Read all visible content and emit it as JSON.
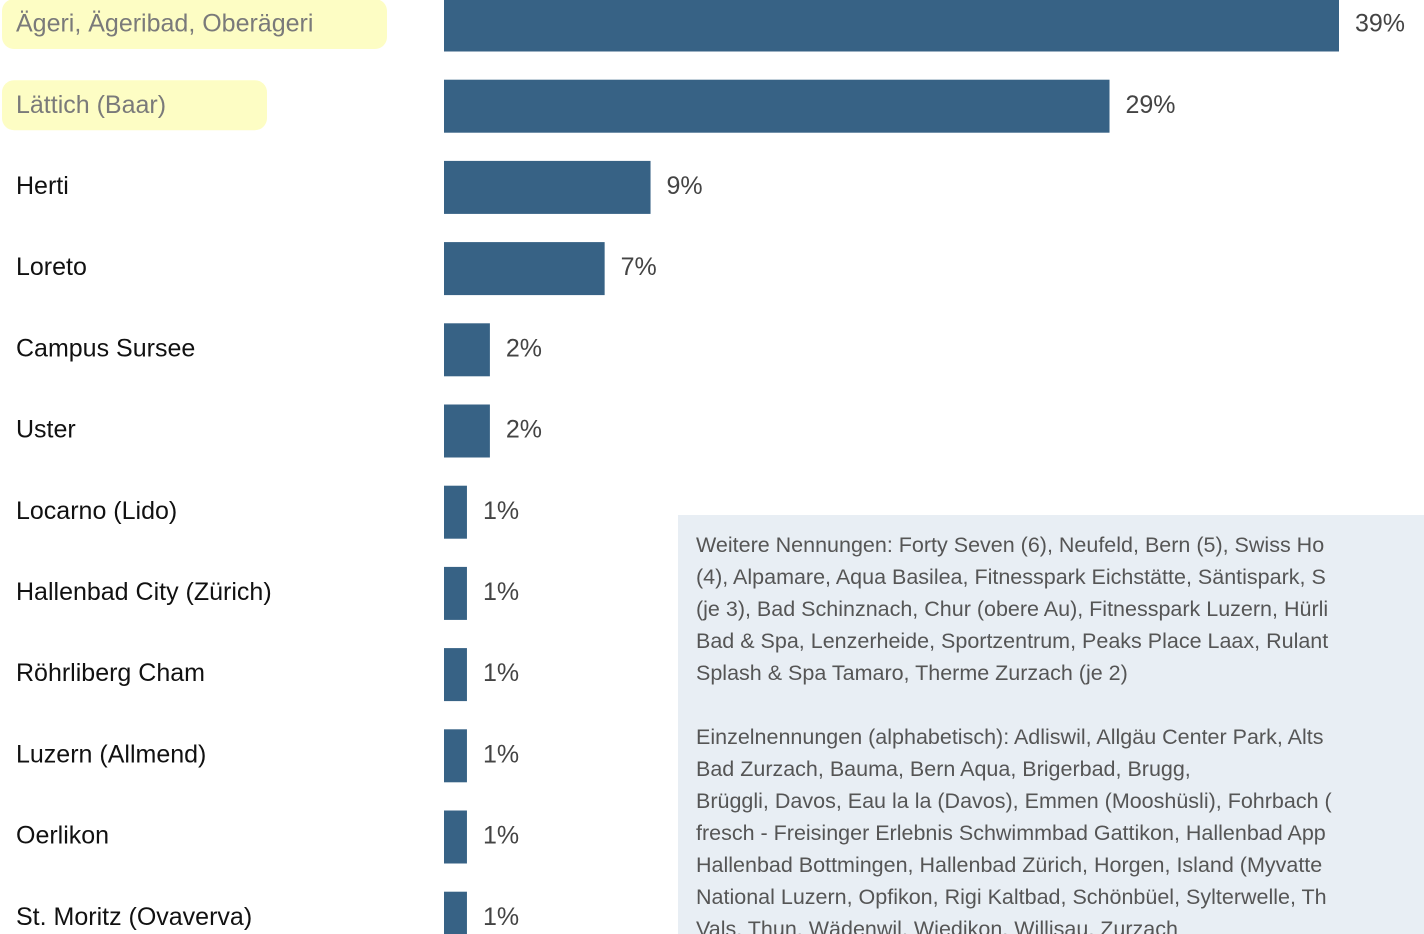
{
  "chart_data": {
    "type": "barh",
    "categories": [
      "Ägeri, Ägeribad, Oberägeri",
      "Lättich (Baar)",
      "Herti",
      "Loreto",
      "Campus Sursee",
      "Uster",
      "Locarno (Lido)",
      "Hallenbad City (Zürich)",
      "Röhrliberg Cham",
      "Luzern (Allmend)",
      "Oerlikon",
      "St. Moritz (Ovaverva)"
    ],
    "values": [
      39,
      29,
      9,
      7,
      2,
      2,
      1,
      1,
      1,
      1,
      1,
      1
    ],
    "value_labels": [
      "39%",
      "29%",
      "9%",
      "7%",
      "2%",
      "2%",
      "1%",
      "1%",
      "1%",
      "1%",
      "1%",
      "1%"
    ],
    "color": "#376285",
    "highlighted": [
      true,
      true,
      false,
      false,
      false,
      false,
      false,
      false,
      false,
      false,
      false,
      false
    ],
    "highlight_color": "#fdfdc4"
  },
  "note": {
    "paragraphs": [
      {
        "lines": [
          "Weitere Nennungen: Forty Seven (6), Neufeld, Bern (5), Swiss Ho",
          "(4), Alpamare, Aqua Basilea, Fitnesspark Eichstätte, Säntispark, S",
          "(je 3), Bad Schinznach, Chur (obere Au), Fitnesspark Luzern, Hürli",
          "Bad & Spa, Lenzerheide, Sportzentrum, Peaks Place Laax, Rulant",
          "Splash & Spa Tamaro, Therme Zurzach (je 2)"
        ]
      },
      {
        "lines": [
          "Einzelnennungen (alphabetisch): Adliswil, Allgäu Center Park, Alts",
          "Bad Zurzach, Bauma, Bern Aqua, Brigerbad, Brugg,",
          "Brüggli, Davos, Eau la la (Davos), Emmen (Mooshüsli), Fohrbach (",
          "fresch - Freisinger Erlebnis Schwimmbad Gattikon, Hallenbad App",
          "Hallenbad Bottmingen, Hallenbad Zürich, Horgen, Island (Myvatte",
          "National Luzern, Opfikon, Rigi Kaltbad, Schönbüel, Sylterwelle, Th",
          "Vals, Thun, Wädenwil, Wiedikon, Willisau, Zurzach"
        ]
      }
    ]
  }
}
